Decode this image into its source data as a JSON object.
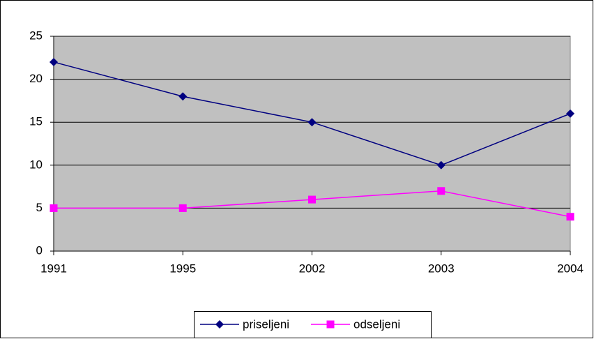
{
  "chart_data": {
    "type": "line",
    "categories": [
      "1991",
      "1995",
      "2002",
      "2003",
      "2004"
    ],
    "series": [
      {
        "name": "priseljeni",
        "color": "#000080",
        "marker": "diamond",
        "values": [
          22,
          18,
          15,
          10,
          16
        ]
      },
      {
        "name": "odseljeni",
        "color": "#ff00ff",
        "marker": "square",
        "values": [
          5,
          5,
          6,
          7,
          4
        ]
      }
    ],
    "ylim": [
      0,
      25
    ],
    "yticks": [
      0,
      5,
      10,
      15,
      20,
      25
    ],
    "grid": true,
    "legend": "bottom"
  }
}
